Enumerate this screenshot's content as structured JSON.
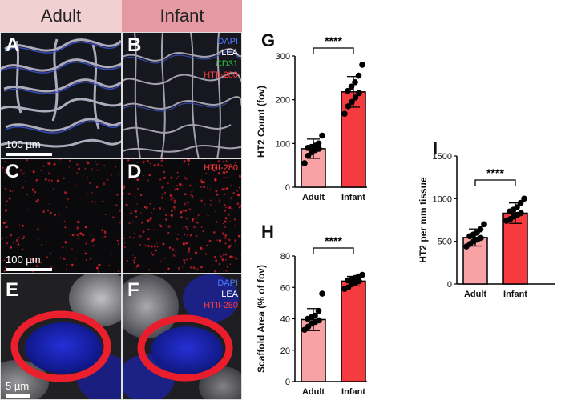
{
  "headers": {
    "adult": "Adult",
    "infant": "Infant"
  },
  "panels": {
    "A": {
      "letter": "A",
      "scalebar": "100 µm"
    },
    "B": {
      "letter": "B",
      "legend": [
        "DAPI",
        "LEA",
        "CD31",
        "HTII-280"
      ],
      "legend_colors": [
        "#4d7cff",
        "#ffffff",
        "#2ecc40",
        "#ff3a3a"
      ]
    },
    "C": {
      "letter": "C",
      "scalebar": "100 µm"
    },
    "D": {
      "letter": "D",
      "legend": [
        "HTII-280"
      ],
      "legend_colors": [
        "#ff3a3a"
      ]
    },
    "E": {
      "letter": "E",
      "scalebar": "5 µm"
    },
    "F": {
      "letter": "F",
      "legend": [
        "DAPI",
        "LEA",
        "HTII-280"
      ],
      "legend_colors": [
        "#4d7cff",
        "#ffffff",
        "#ff3a3a"
      ]
    }
  },
  "chart_data": [
    {
      "panel_letter": "G",
      "type": "bar",
      "categories": [
        "Adult",
        "Infant"
      ],
      "values": [
        88,
        218
      ],
      "errors": [
        22,
        35
      ],
      "points": [
        [
          55,
          72,
          80,
          85,
          88,
          90,
          92,
          95,
          100,
          118
        ],
        [
          168,
          185,
          195,
          205,
          215,
          220,
          230,
          240,
          255,
          280
        ]
      ],
      "ylabel": "HT2  Count (fov)",
      "ylim": [
        0,
        300
      ],
      "yticks": [
        0,
        100,
        200,
        300
      ],
      "significance": "****",
      "colors": [
        "#f8a2a6",
        "#f53b3f"
      ]
    },
    {
      "panel_letter": "H",
      "type": "bar",
      "categories": [
        "Adult",
        "Infant"
      ],
      "values": [
        39.5,
        64
      ],
      "errors": [
        7,
        3
      ],
      "points": [
        [
          33,
          35,
          37,
          38,
          39,
          40,
          41,
          42,
          45,
          56
        ],
        [
          59,
          60,
          62,
          63,
          64,
          64.5,
          65,
          66,
          67,
          68
        ]
      ],
      "ylabel": "Scaffold Area (% of fov)",
      "ylim": [
        0,
        80
      ],
      "yticks": [
        0,
        20,
        40,
        60,
        80
      ],
      "significance": "****",
      "colors": [
        "#f8a2a6",
        "#f53b3f"
      ]
    },
    {
      "panel_letter": "I",
      "type": "bar",
      "categories": [
        "Adult",
        "Infant"
      ],
      "values": [
        545,
        830
      ],
      "errors": [
        100,
        120
      ],
      "points": [
        [
          440,
          470,
          500,
          520,
          540,
          560,
          580,
          600,
          640,
          700
        ],
        [
          740,
          760,
          790,
          810,
          830,
          850,
          870,
          900,
          950,
          1000
        ]
      ],
      "ylabel": "HT2 per mm tissue",
      "ylim": [
        0,
        1500
      ],
      "yticks": [
        0,
        500,
        1000,
        1500
      ],
      "significance": "****",
      "colors": [
        "#f8a2a6",
        "#f53b3f"
      ]
    }
  ]
}
